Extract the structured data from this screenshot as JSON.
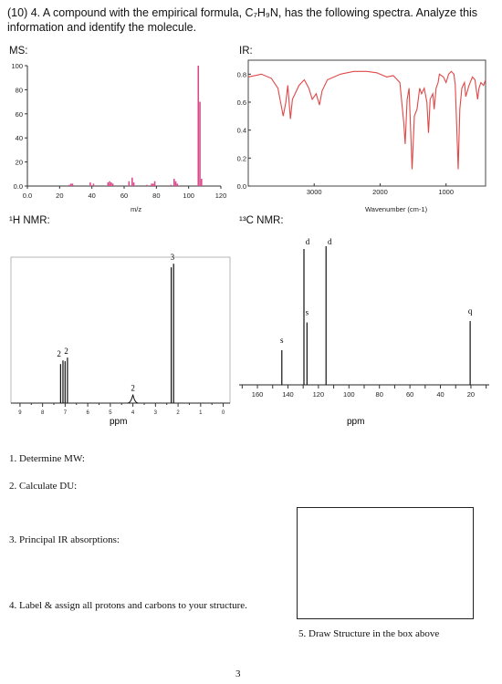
{
  "header": {
    "line1": "(10) 4.  A compound with the empirical formula, C₇H₉N, has the following spectra. Analyze this",
    "line2": "information and identify the molecule."
  },
  "labels": {
    "ms": "MS:",
    "ir": "IR:",
    "hnmr": "¹H NMR:",
    "cnmr": "¹³C NMR:"
  },
  "ms": {
    "xlabel": "m/z",
    "xticks": [
      "0.0",
      "20",
      "40",
      "60",
      "80",
      "100",
      "120"
    ],
    "yticks": [
      "100",
      "80",
      "60",
      "40",
      "20",
      "0.0"
    ],
    "xlim": [
      0,
      120
    ],
    "ylim": [
      0,
      100
    ],
    "peaks": [
      [
        26,
        1
      ],
      [
        27,
        2
      ],
      [
        28,
        2
      ],
      [
        39,
        3
      ],
      [
        41,
        2
      ],
      [
        50,
        3
      ],
      [
        51,
        4
      ],
      [
        52,
        3
      ],
      [
        53,
        2
      ],
      [
        63,
        4
      ],
      [
        65,
        7
      ],
      [
        66,
        3
      ],
      [
        74,
        1
      ],
      [
        77,
        2
      ],
      [
        78,
        2
      ],
      [
        79,
        4
      ],
      [
        89,
        1
      ],
      [
        91,
        6
      ],
      [
        92,
        4
      ],
      [
        93,
        2
      ],
      [
        106,
        100
      ],
      [
        107,
        70
      ],
      [
        108,
        6
      ]
    ],
    "color": "#d94c8c"
  },
  "ir": {
    "xlabel": "Wavenumber (cm-1)",
    "xticks": [
      "3000",
      "2000",
      "1000"
    ],
    "yticks": [
      "0.8",
      "0.6",
      "0.4",
      "0.2",
      "0.0"
    ],
    "color": "#e04848"
  },
  "hnmr": {
    "xlabel": "ppm",
    "xticks": [
      "9",
      "8",
      "7",
      "6",
      "5",
      "4",
      "3",
      "2",
      "1",
      "0"
    ],
    "peaks": [
      {
        "ppm": 7.15,
        "height": 0.3,
        "label": "2"
      },
      {
        "ppm": 6.95,
        "height": 0.32,
        "label": "2"
      },
      {
        "ppm": 4.0,
        "height": 0.06,
        "label": "2"
      },
      {
        "ppm": 2.25,
        "height": 0.98,
        "label": "3"
      }
    ]
  },
  "cnmr": {
    "xlabel": "ppm",
    "xticks": [
      "160",
      "140",
      "120",
      "100",
      "80",
      "60",
      "40",
      "20"
    ],
    "peaks": [
      {
        "ppm": 144,
        "height": 0.25,
        "label": "s"
      },
      {
        "ppm": 129.5,
        "height": 0.98,
        "label": "d"
      },
      {
        "ppm": 127.5,
        "height": 0.45,
        "label": "s"
      },
      {
        "ppm": 115,
        "height": 1.0,
        "label": "d"
      },
      {
        "ppm": 20.5,
        "height": 0.46,
        "label": "q"
      }
    ]
  },
  "questions": {
    "q1": "1. Determine MW:",
    "q2": "2. Calculate DU:",
    "q3": "3. Principal IR absorptions:",
    "q4": "4. Label & assign all protons and carbons to your structure.",
    "q5": "5. Draw Structure in the box above"
  },
  "page_number": "3"
}
